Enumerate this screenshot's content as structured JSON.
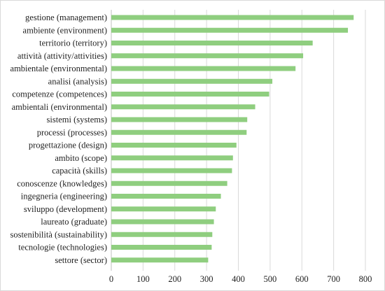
{
  "chart_data": {
    "type": "bar",
    "orientation": "horizontal",
    "categories": [
      "gestione (management)",
      "ambiente (environment)",
      "territorio (territory)",
      "attività (attivity/attivities)",
      "ambientale (environmental)",
      "analisi (analysis)",
      "competenze (competences)",
      "ambientali (environmental)",
      "sistemi (systems)",
      "processi (processes)",
      "progettazione (design)",
      "ambito (scope)",
      "capacità (skills)",
      "conoscenze (knowledges)",
      "ingegneria (engineering)",
      "sviluppo (development)",
      "laureato (graduate)",
      "sostenibilità (sustainability)",
      "tecnologie (technologies)",
      "settore (sector)"
    ],
    "values": [
      763,
      745,
      634,
      604,
      580,
      507,
      497,
      453,
      428,
      426,
      394,
      383,
      380,
      365,
      345,
      329,
      323,
      318,
      316,
      305
    ],
    "xlim": [
      0,
      800
    ],
    "xticks": [
      "0",
      "100",
      "200",
      "300",
      "400",
      "500",
      "600",
      "700",
      "800"
    ],
    "title": "",
    "xlabel": "",
    "ylabel": "",
    "grid": "vertical",
    "legend": "none",
    "bar_color": "#8fce7f"
  }
}
